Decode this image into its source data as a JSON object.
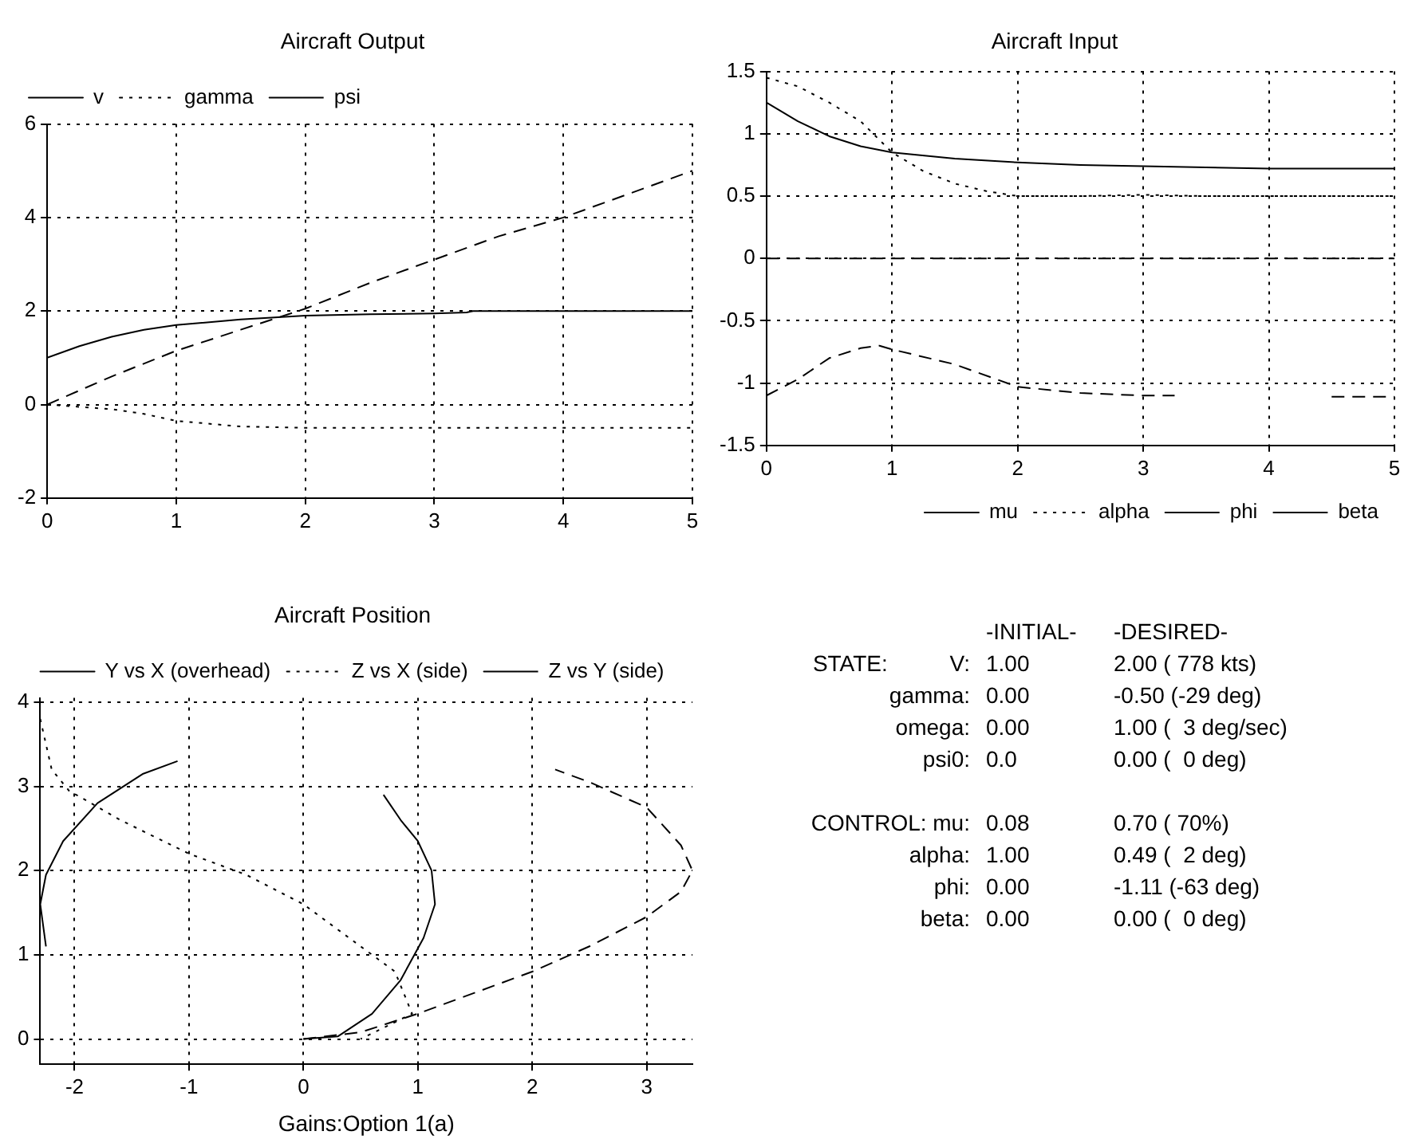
{
  "chart_data": [
    {
      "type": "line",
      "title": "Aircraft Output",
      "xlim": [
        0,
        5
      ],
      "xticks": [
        0,
        1,
        2,
        3,
        4,
        5
      ],
      "ylim": [
        -2,
        6
      ],
      "yticks": [
        -2,
        0,
        2,
        4,
        6
      ],
      "grid": true,
      "legend": "top left",
      "series": [
        {
          "name": "v",
          "color": "#000000",
          "line_style": "solid",
          "x": [
            0,
            0.25,
            0.5,
            0.75,
            1,
            1.5,
            2,
            2.5,
            3,
            3.25,
            3.3,
            4,
            5
          ],
          "values": [
            1,
            1.25,
            1.45,
            1.6,
            1.7,
            1.82,
            1.9,
            1.93,
            1.95,
            1.97,
            2,
            2,
            2
          ]
        },
        {
          "name": "gamma",
          "color": "#000000",
          "line_style": "dotted",
          "x": [
            0,
            0.5,
            0.75,
            1,
            1.5,
            2,
            3,
            5
          ],
          "values": [
            0,
            -0.1,
            -0.2,
            -0.35,
            -0.47,
            -0.5,
            -0.5,
            -0.5
          ]
        },
        {
          "name": "psi",
          "color": "#000000",
          "line_style": "dashed",
          "x": [
            0,
            0.25,
            0.5,
            1,
            1.5,
            2,
            2.5,
            3,
            3.5,
            4,
            4.5,
            5
          ],
          "values": [
            0,
            0.3,
            0.6,
            1.15,
            1.6,
            2.05,
            2.6,
            3.1,
            3.6,
            4,
            4.5,
            5
          ]
        }
      ]
    },
    {
      "type": "line",
      "title": "Aircraft Input",
      "xlim": [
        0,
        5
      ],
      "xticks": [
        0,
        1,
        2,
        3,
        4,
        5
      ],
      "ylim": [
        -1.5,
        1.5
      ],
      "yticks": [
        -1.5,
        -1,
        -0.5,
        0,
        0.5,
        1,
        1.5
      ],
      "grid": true,
      "legend": "bottom right",
      "series": [
        {
          "name": "mu",
          "color": "#000000",
          "line_style": "solid",
          "x": [
            0,
            0.25,
            0.5,
            0.75,
            1,
            1.5,
            2,
            2.5,
            3,
            3.5,
            4,
            5
          ],
          "values": [
            1.25,
            1.1,
            0.98,
            0.9,
            0.85,
            0.8,
            0.77,
            0.75,
            0.74,
            0.73,
            0.72,
            0.72
          ]
        },
        {
          "name": "alpha",
          "color": "#000000",
          "line_style": "dotted",
          "x": [
            0,
            0.25,
            0.5,
            0.75,
            1,
            1.25,
            1.5,
            1.75,
            2,
            2.5,
            3,
            3.5,
            4,
            5
          ],
          "values": [
            1.45,
            1.38,
            1.25,
            1.1,
            0.85,
            0.7,
            0.6,
            0.54,
            0.5,
            0.5,
            0.51,
            0.5,
            0.5,
            0.5
          ]
        },
        {
          "name": "phi",
          "color": "#000000",
          "line_style": "dashed",
          "x": [
            0,
            0.25,
            0.5,
            0.75,
            0.9,
            1,
            1.5,
            2,
            2.5,
            3,
            3.25,
            3.5,
            4,
            4.5,
            5
          ],
          "values": [
            -1.1,
            -0.97,
            -0.8,
            -0.72,
            -0.7,
            -0.73,
            -0.85,
            -1.03,
            -1.08,
            -1.1,
            -1.1,
            null,
            null,
            -1.11,
            -1.11
          ]
        },
        {
          "name": "beta",
          "color": "#000000",
          "line_style": "dashed",
          "x": [
            0,
            5
          ],
          "values": [
            0,
            0
          ]
        }
      ]
    },
    {
      "type": "line",
      "title": "Aircraft Position",
      "xlabel": "Gains:Option 1(a)",
      "xlim": [
        -2.3,
        3.4
      ],
      "xticks": [
        -2,
        -1,
        0,
        1,
        2,
        3
      ],
      "ylim": [
        -0.3,
        4.05
      ],
      "yticks": [
        0,
        1,
        2,
        3,
        4
      ],
      "grid": true,
      "legend": "top",
      "series": [
        {
          "name": "Y vs X (overhead)",
          "color": "#000000",
          "line_style": "solid",
          "x": [
            0,
            0.3,
            0.6,
            0.85,
            1.05,
            1.15,
            1.12,
            1.0,
            0.85,
            0.7,
            0,
            -1.1,
            -1.4,
            -1.8,
            -2.1,
            -2.25,
            -2.3,
            -2.25
          ],
          "values": [
            0,
            0.03,
            0.3,
            0.7,
            1.2,
            1.6,
            2.0,
            2.35,
            2.6,
            2.9,
            null,
            3.3,
            3.15,
            2.8,
            2.35,
            1.95,
            1.6,
            1.1
          ]
        },
        {
          "name": "Z vs X (side)",
          "color": "#000000",
          "line_style": "dotted",
          "x": [
            -2.3,
            -2.2,
            -2.05,
            -1.6,
            -1.0,
            -0.5,
            0,
            0.5,
            0.8,
            0.95,
            0.5
          ],
          "values": [
            3.8,
            3.2,
            2.95,
            2.6,
            2.2,
            1.95,
            1.6,
            1.1,
            0.8,
            0.3,
            0
          ]
        },
        {
          "name": "Z vs Y (side)",
          "color": "#000000",
          "line_style": "dashed",
          "x": [
            0,
            0.5,
            1,
            1.5,
            2,
            2.5,
            3,
            3.3,
            3.4,
            3.3,
            3.0,
            2.5,
            2.2
          ],
          "values": [
            0,
            0.08,
            0.3,
            0.55,
            0.8,
            1.1,
            1.45,
            1.75,
            2.0,
            2.3,
            2.75,
            3.05,
            3.2
          ]
        }
      ]
    },
    {
      "type": "other",
      "annotations": [
        "-INITIAL-",
        "-DESIRED-",
        "STATE:          V:",
        "1.00",
        "2.00 ( 778 kts)",
        "gamma:",
        "0.00",
        "-0.50 (-29 deg)",
        "omega:",
        "0.00",
        "1.00 (  3 deg/sec)",
        "psi0:",
        "0.0",
        "0.00 (  0 deg)",
        "CONTROL: mu:",
        "0.08",
        "0.70 ( 70%)",
        "alpha:",
        "1.00",
        "0.49 (  2 deg)",
        "phi:",
        "0.00",
        "-1.11 (-63 deg)",
        "beta:",
        "0.00",
        "0.00 (  0 deg)"
      ]
    }
  ]
}
